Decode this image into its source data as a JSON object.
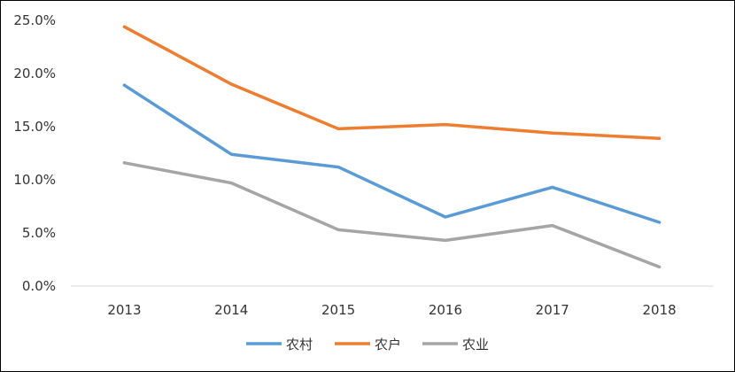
{
  "chart_data": {
    "type": "line",
    "title": "",
    "xlabel": "",
    "ylabel": "",
    "categories": [
      "2013",
      "2014",
      "2015",
      "2016",
      "2017",
      "2018"
    ],
    "ylim": [
      0,
      25
    ],
    "y_ticks": [
      0,
      5,
      10,
      15,
      20,
      25
    ],
    "y_tick_labels": [
      "0.0%",
      "5.0%",
      "10.0%",
      "15.0%",
      "20.0%",
      "25.0%"
    ],
    "grid": false,
    "legend_position": "bottom",
    "series": [
      {
        "name": "农村",
        "color": "#5b9bd5",
        "values": [
          18.9,
          12.4,
          11.2,
          6.5,
          9.3,
          6.0
        ]
      },
      {
        "name": "农户",
        "color": "#ed7d31",
        "values": [
          24.4,
          19.0,
          14.8,
          15.2,
          14.4,
          13.9
        ]
      },
      {
        "name": "农业",
        "color": "#a5a5a5",
        "values": [
          11.6,
          9.7,
          5.3,
          4.3,
          5.7,
          1.8
        ]
      }
    ]
  }
}
